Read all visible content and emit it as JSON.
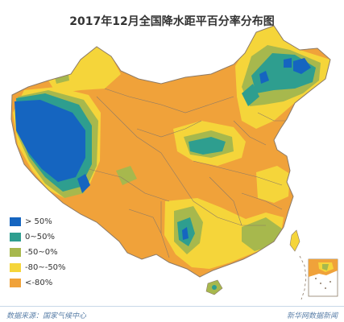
{
  "title": "2017年12月全国降水距平百分率分布图",
  "legend": [
    {
      "label": "> 50%",
      "color": "#1565c0"
    },
    {
      "label": "0~50%",
      "color": "#2e9e8f"
    },
    {
      "label": "-50~0%",
      "color": "#a7b84d"
    },
    {
      "label": "-80~-50%",
      "color": "#f5d53a"
    },
    {
      "label": "<-80%",
      "color": "#f0a23a"
    }
  ],
  "footer": {
    "source": "数据来源：国家气候中心",
    "credit": "新华网数据新闻"
  },
  "map": {
    "boundary_color": "#8c7a66",
    "sea_color": "#ffffff"
  }
}
